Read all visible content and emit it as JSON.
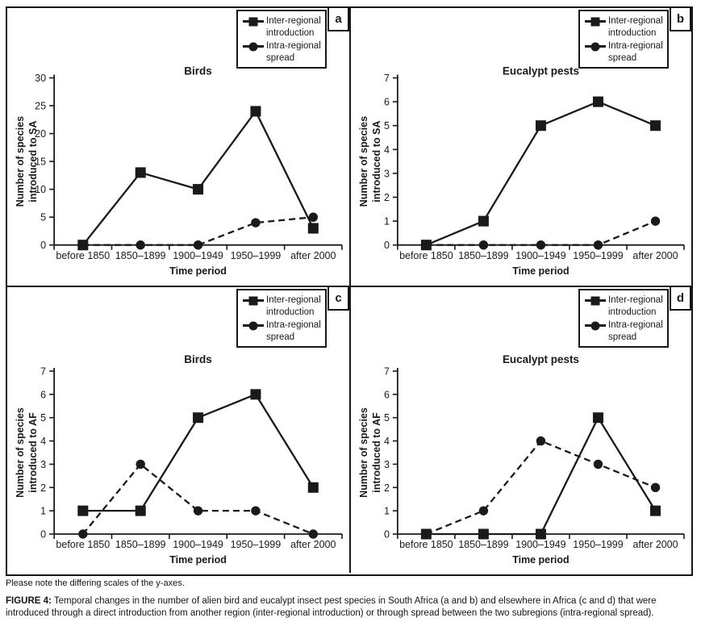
{
  "colors": {
    "ink": "#1a1a1a",
    "border": "#161616",
    "background": "#ffffff"
  },
  "legend": {
    "items": [
      {
        "label": "Inter-regional introduction",
        "marker": "square",
        "line": "solid"
      },
      {
        "label": "Intra-regional spread",
        "marker": "circle",
        "line": "dashed"
      }
    ]
  },
  "caption": {
    "note": "Please note the differing scales of the y-axes.",
    "figure_label": "FIGURE 4:",
    "figure_text": " Temporal changes in the number of alien bird and eucalypt insect pest species in South Africa (a and b) and elsewhere in Africa (c and d) that were introduced through a direct introduction from another region (inter-regional introduction) or through spread between the two subregions (intra-regional spread)."
  },
  "chart_data": [
    {
      "type": "line",
      "panel_label": "a",
      "row": "top",
      "title": "Birds",
      "xlabel": "Time period",
      "ylabel": [
        "Number of species",
        "introduced to SA"
      ],
      "ylim": [
        0,
        30
      ],
      "ytick_step": 5,
      "grid": false,
      "legend_position": "top-right",
      "categories": [
        "before 1850",
        "1850–1899",
        "1900–1949",
        "1950–1999",
        "after 2000"
      ],
      "series": [
        {
          "name": "Inter-regional introduction",
          "marker": "square",
          "line": "solid",
          "values": [
            0,
            13,
            10,
            24,
            3
          ]
        },
        {
          "name": "Intra-regional spread",
          "marker": "circle",
          "line": "dashed",
          "values": [
            0,
            0,
            0,
            4,
            5
          ]
        }
      ]
    },
    {
      "type": "line",
      "panel_label": "b",
      "row": "top",
      "title": "Eucalypt pests",
      "xlabel": "Time period",
      "ylabel": [
        "Number of species",
        "introduced to SA"
      ],
      "ylim": [
        0,
        7
      ],
      "ytick_step": 1,
      "grid": false,
      "legend_position": "top-right",
      "categories": [
        "before 1850",
        "1850–1899",
        "1900–1949",
        "1950–1999",
        "after 2000"
      ],
      "series": [
        {
          "name": "Inter-regional introduction",
          "marker": "square",
          "line": "solid",
          "values": [
            0,
            1,
            5,
            6,
            5
          ]
        },
        {
          "name": "Intra-regional spread",
          "marker": "circle",
          "line": "dashed",
          "values": [
            0,
            0,
            0,
            0,
            1
          ]
        }
      ]
    },
    {
      "type": "line",
      "panel_label": "c",
      "row": "bottom",
      "title": "Birds",
      "xlabel": "Time period",
      "ylabel": [
        "Number of species",
        "introduced to AF"
      ],
      "ylim": [
        0,
        7
      ],
      "ytick_step": 1,
      "grid": false,
      "legend_position": "top-right",
      "categories": [
        "before 1850",
        "1850–1899",
        "1900–1949",
        "1950–1999",
        "after 2000"
      ],
      "series": [
        {
          "name": "Inter-regional introduction",
          "marker": "square",
          "line": "solid",
          "values": [
            1,
            1,
            5,
            6,
            2
          ]
        },
        {
          "name": "Intra-regional spread",
          "marker": "circle",
          "line": "dashed",
          "values": [
            0,
            3,
            1,
            1,
            0
          ]
        }
      ]
    },
    {
      "type": "line",
      "panel_label": "d",
      "row": "bottom",
      "title": "Eucalypt pests",
      "xlabel": "Time period",
      "ylabel": [
        "Number of species",
        "introduced to AF"
      ],
      "ylim": [
        0,
        7
      ],
      "ytick_step": 1,
      "grid": false,
      "legend_position": "top-right",
      "categories": [
        "before 1850",
        "1850–1899",
        "1900–1949",
        "1950–1999",
        "after 2000"
      ],
      "series": [
        {
          "name": "Inter-regional introduction",
          "marker": "square",
          "line": "solid",
          "values": [
            0,
            0,
            0,
            5,
            1
          ]
        },
        {
          "name": "Intra-regional spread",
          "marker": "circle",
          "line": "dashed",
          "values": [
            0,
            1,
            4,
            3,
            2
          ]
        }
      ]
    }
  ]
}
